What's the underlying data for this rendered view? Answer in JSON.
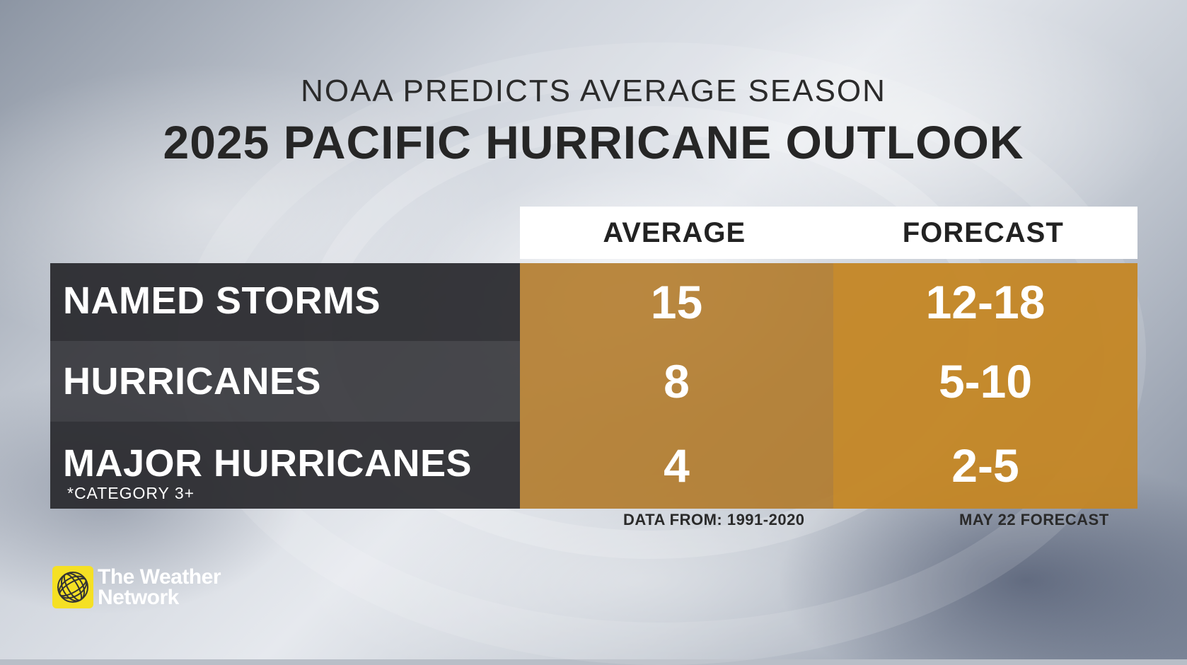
{
  "subtitle": "NOAA PREDICTS AVERAGE SEASON",
  "title": "2025 PACIFIC HURRICANE OUTLOOK",
  "table": {
    "columns": [
      "AVERAGE",
      "FORECAST"
    ],
    "rows": [
      {
        "label": "NAMED STORMS",
        "note": "",
        "average": "15",
        "forecast": "12-18"
      },
      {
        "label": "HURRICANES",
        "note": "",
        "average": "8",
        "forecast": "5-10"
      },
      {
        "label": "MAJOR HURRICANES",
        "note": "*CATEGORY 3+",
        "average": "4",
        "forecast": "2-5"
      }
    ]
  },
  "footnotes": {
    "average": "DATA FROM: 1991-2020",
    "forecast": "MAY 22 FORECAST"
  },
  "logo": {
    "line1": "The Weather",
    "line2": "Network",
    "icon": "weather-network-globe-icon"
  },
  "colors": {
    "average_fill": "#b07826",
    "forecast_fill": "#c48624",
    "label_fill": "#2a2a2e",
    "logo_yellow": "#f5e024"
  }
}
